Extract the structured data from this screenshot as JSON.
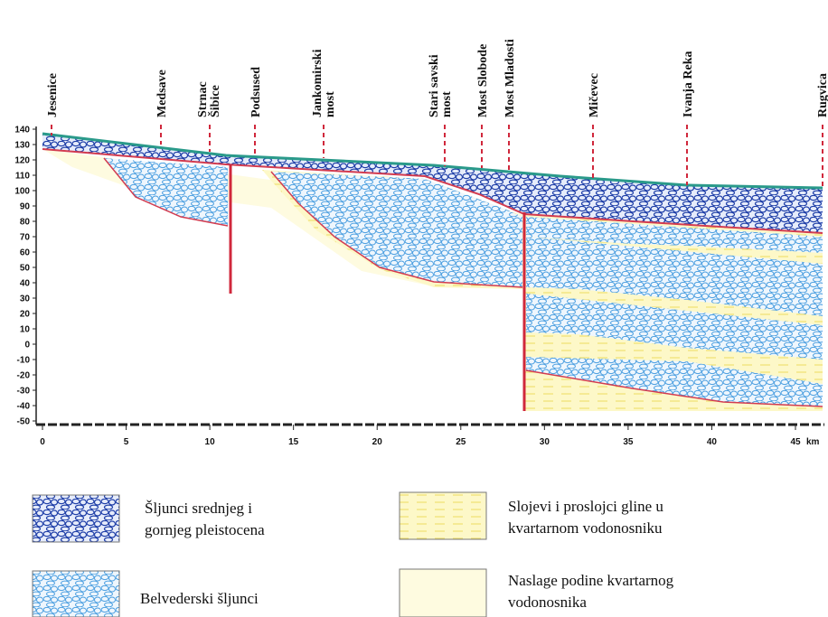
{
  "locations": [
    "Jesenice",
    "Medsave",
    "Strnac",
    "Šibice",
    "Podsused",
    "Jankomirski",
    "most",
    "Stari savski",
    "most",
    "Most Slobode",
    "Most Mladosti",
    "Mičevec",
    "Ivanja Reka",
    "Rugvica"
  ],
  "y_axis": {
    "ticks": [
      140,
      130,
      120,
      110,
      100,
      90,
      80,
      70,
      60,
      50,
      40,
      30,
      20,
      10,
      0,
      -10,
      -20,
      -30,
      -40,
      -50
    ]
  },
  "x_axis": {
    "ticks": [
      0,
      5,
      10,
      15,
      20,
      25,
      30,
      35,
      40,
      45
    ],
    "unit": "km"
  },
  "legend": {
    "gravel_upper": [
      "Šljunci srednjeg i",
      "gornjeg pleistocena"
    ],
    "clay": [
      "Slojevi i proslojci gline u",
      "kvartarnom vodonosniku"
    ],
    "belvedere": [
      "Belvederski šljunci"
    ],
    "base": [
      "Naslage podine kvartarnog",
      "vodonosnika"
    ]
  }
}
